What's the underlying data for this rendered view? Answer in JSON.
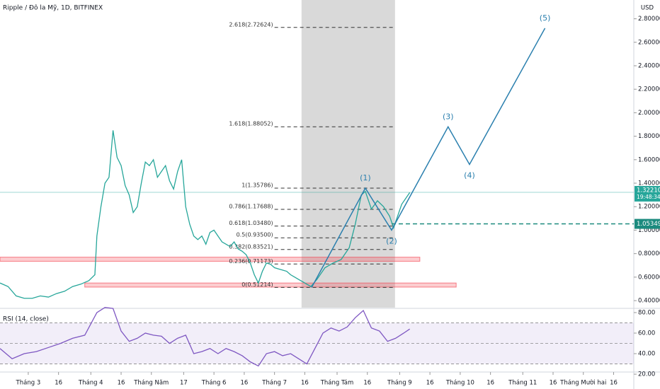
{
  "chart_data": [
    {
      "type": "line",
      "title": "Ripple / Đô la Mỹ, 1D, BITFINEX",
      "unit": "USD",
      "x": [
        -14,
        -10,
        -6,
        -2,
        2,
        6,
        10,
        14,
        18,
        22,
        26,
        30,
        33,
        34,
        36,
        38,
        40,
        42,
        44,
        46,
        48,
        50,
        52,
        54,
        56,
        58,
        60,
        62,
        64,
        66,
        68,
        70,
        72,
        74,
        76,
        78,
        80,
        82,
        84,
        86,
        88,
        90,
        92,
        94,
        96,
        98,
        100,
        102,
        104,
        106,
        108,
        110,
        112,
        114,
        116,
        118,
        120,
        122,
        124,
        126,
        128,
        130,
        132,
        134,
        136,
        138,
        140,
        143,
        147,
        151,
        155,
        159,
        162,
        165,
        167,
        170,
        173,
        176,
        179,
        181,
        185,
        189
      ],
      "series": [
        {
          "color": "#26a69a",
          "values": [
            0.55,
            0.52,
            0.44,
            0.42,
            0.42,
            0.44,
            0.43,
            0.46,
            0.48,
            0.52,
            0.54,
            0.57,
            0.62,
            0.95,
            1.2,
            1.4,
            1.45,
            1.85,
            1.62,
            1.55,
            1.38,
            1.3,
            1.15,
            1.2,
            1.4,
            1.58,
            1.55,
            1.6,
            1.45,
            1.5,
            1.55,
            1.42,
            1.35,
            1.5,
            1.6,
            1.2,
            1.05,
            0.95,
            0.92,
            0.95,
            0.88,
            0.98,
            1.0,
            0.95,
            0.9,
            0.88,
            0.86,
            0.9,
            0.84,
            0.82,
            0.79,
            0.72,
            0.62,
            0.55,
            0.65,
            0.72,
            0.71,
            0.68,
            0.67,
            0.66,
            0.65,
            0.62,
            0.6,
            0.58,
            0.56,
            0.54,
            0.52,
            0.58,
            0.68,
            0.72,
            0.75,
            0.85,
            1.05,
            1.3,
            1.33,
            1.18,
            1.25,
            1.2,
            1.12,
            1.02,
            1.22,
            1.32
          ]
        }
      ],
      "xlim": [
        -14,
        300
      ],
      "xticks": [
        {
          "value": 0,
          "label": "Tháng 3"
        },
        {
          "value": 15,
          "label": "16"
        },
        {
          "value": 31,
          "label": "Tháng 4"
        },
        {
          "value": 46,
          "label": "16"
        },
        {
          "value": 61,
          "label": "Tháng Năm"
        },
        {
          "value": 77,
          "label": "17"
        },
        {
          "value": 92,
          "label": "Tháng 6"
        },
        {
          "value": 107,
          "label": "16"
        },
        {
          "value": 122,
          "label": "Tháng 7"
        },
        {
          "value": 137,
          "label": "16"
        },
        {
          "value": 153,
          "label": "Tháng Tám"
        },
        {
          "value": 168,
          "label": "16"
        },
        {
          "value": 184,
          "label": "Tháng 9"
        },
        {
          "value": 199,
          "label": "16"
        },
        {
          "value": 214,
          "label": "Tháng 10"
        },
        {
          "value": 229,
          "label": "16"
        },
        {
          "value": 245,
          "label": "Tháng 11"
        },
        {
          "value": 260,
          "label": "16"
        },
        {
          "value": 275,
          "label": "Tháng Mười hai"
        },
        {
          "value": 290,
          "label": "16"
        }
      ],
      "ylim": [
        0.34,
        2.96
      ],
      "yticks": [
        {
          "value": 0.4,
          "label": "0.40000"
        },
        {
          "value": 0.6,
          "label": "0.60000"
        },
        {
          "value": 0.8,
          "label": "0.80000"
        },
        {
          "value": 1.0,
          "label": "1.00000"
        },
        {
          "value": 1.2,
          "label": "1.20000"
        },
        {
          "value": 1.4,
          "label": "1.40000"
        },
        {
          "value": 1.6,
          "label": "1.60000"
        },
        {
          "value": 1.8,
          "label": "1.80000"
        },
        {
          "value": 2.0,
          "label": "2.00000"
        },
        {
          "value": 2.2,
          "label": "2.20000"
        },
        {
          "value": 2.4,
          "label": "2.40000"
        },
        {
          "value": 2.6,
          "label": "2.60000"
        },
        {
          "value": 2.8,
          "label": "2.80000"
        }
      ],
      "last_price": {
        "value": 1.3221,
        "label": "1.32210"
      },
      "countdown": "19:48:34",
      "level": {
        "value": 1.05349,
        "label": "1.05349"
      },
      "highlight_x": [
        135.4,
        181.7
      ],
      "zones": [
        {
          "x": [
            -14,
            194
          ],
          "y": [
            0.735,
            0.77
          ]
        },
        {
          "x": [
            28,
            212
          ],
          "y": [
            0.515,
            0.55
          ]
        }
      ],
      "fibonacci": [
        {
          "value": 0.51214,
          "label": "0(0.51214)"
        },
        {
          "value": 0.71173,
          "label": "0.236(0.71173)"
        },
        {
          "value": 0.83521,
          "label": "0.382(0.83521)"
        },
        {
          "value": 0.935,
          "label": "0.5(0.93500)"
        },
        {
          "value": 1.0348,
          "label": "0.618(1.03480)"
        },
        {
          "value": 1.17688,
          "label": "0.786(1.17688)"
        },
        {
          "value": 1.35786,
          "label": "1(1.35786)"
        },
        {
          "value": 1.88052,
          "label": "1.618(1.88052)"
        },
        {
          "value": 2.72624,
          "label": "2.618(2.72624)"
        }
      ],
      "fib_x": [
        122,
        181
      ],
      "waves": {
        "color": "#2a7fae",
        "x": [
          140.4,
          167,
          180,
          208,
          218.6,
          256
        ],
        "values": [
          0.512,
          1.358,
          1.0,
          1.88,
          1.56,
          2.72
        ],
        "labels": [
          null,
          "(1)",
          "(2)",
          "(3)",
          "(4)",
          "(5)"
        ]
      }
    },
    {
      "type": "line",
      "title": "RSI (14, close)",
      "color": "#7e57c2",
      "x": [
        -14,
        -8,
        -2,
        4,
        10,
        16,
        22,
        28,
        34,
        38,
        42,
        46,
        50,
        54,
        58,
        62,
        66,
        70,
        74,
        78,
        82,
        86,
        90,
        94,
        98,
        102,
        106,
        110,
        114,
        118,
        122,
        126,
        130,
        134,
        138,
        142,
        146,
        150,
        154,
        158,
        162,
        166,
        170,
        174,
        178,
        182,
        186,
        189
      ],
      "values": [
        45,
        35,
        40,
        42,
        46,
        50,
        55,
        58,
        80,
        85,
        84,
        62,
        52,
        55,
        60,
        58,
        57,
        50,
        55,
        58,
        40,
        42,
        45,
        40,
        45,
        42,
        38,
        32,
        28,
        40,
        42,
        38,
        40,
        35,
        30,
        45,
        60,
        65,
        62,
        66,
        75,
        82,
        65,
        62,
        52,
        55,
        60,
        64
      ],
      "ylim": [
        22.8,
        83.4
      ],
      "yticks": [
        {
          "value": 20,
          "label": "20.00"
        },
        {
          "value": 40,
          "label": "40.00"
        },
        {
          "value": 60,
          "label": "60.00"
        },
        {
          "value": 80,
          "label": "80.00"
        }
      ],
      "levels": [
        30,
        50,
        70
      ]
    }
  ]
}
